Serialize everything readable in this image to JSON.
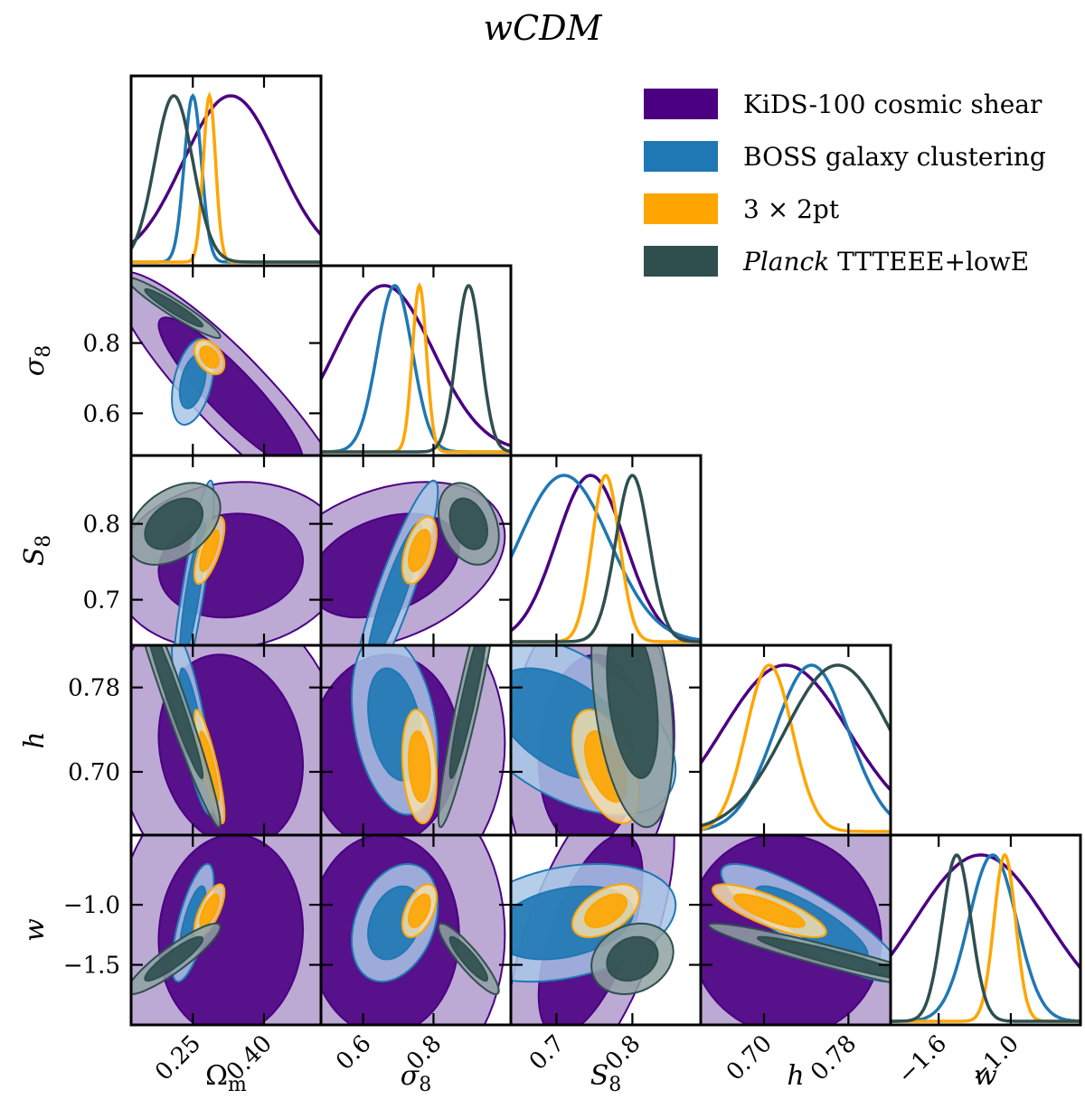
{
  "title": "wCDM",
  "colors": {
    "kids": "#4b0082",
    "kids_light": "#b09acd",
    "boss": "#1f78b4",
    "boss_light": "#a8c7e6",
    "x3": "#ffa500",
    "x3_light": "#f6dfab",
    "planck": "#2f4f4f",
    "planck_light": "#8fa1a1"
  },
  "legend": [
    {
      "key": "kids",
      "label": "KiDS-100 cosmic shear"
    },
    {
      "key": "boss",
      "label": "BOSS galaxy clustering"
    },
    {
      "key": "x3",
      "label": "3 × 2pt"
    },
    {
      "key": "planck",
      "label_em": "Planck",
      "label_rest": " TTTEEE+lowE"
    }
  ],
  "axis_labels": {
    "omega_m": "Ωm",
    "sigma_8": "σ8",
    "S_8": "S8",
    "h": "h",
    "w": "w"
  },
  "chart_data": {
    "type": "triangle_corner_plot",
    "parameters": [
      "Omega_m",
      "sigma_8",
      "S_8",
      "h",
      "w"
    ],
    "ranges": {
      "Omega_m": [
        0.12,
        0.52
      ],
      "sigma_8": [
        0.48,
        1.02
      ],
      "S_8": [
        0.64,
        0.89
      ],
      "h": [
        0.64,
        0.82
      ],
      "w": [
        -2.0,
        -0.42
      ]
    },
    "ticks": {
      "Omega_m": {
        "values": [
          0.25,
          0.4
        ],
        "labels": [
          "0.25",
          "0.40"
        ]
      },
      "sigma_8": {
        "values": [
          0.6,
          0.8
        ],
        "labels": [
          "0.6",
          "0.8"
        ]
      },
      "S_8": {
        "values": [
          0.7,
          0.8
        ],
        "labels": [
          "0.7",
          "0.8"
        ]
      },
      "h": {
        "values": [
          0.7,
          0.78
        ],
        "labels": [
          "0.70",
          "0.78"
        ]
      },
      "w": {
        "values": [
          -1.6,
          -1.0
        ],
        "labels": [
          "−1.6",
          "−1.0"
        ],
        "y_values": [
          -1.0,
          -1.5
        ],
        "y_labels": [
          "−1.0",
          "−1.5"
        ]
      }
    },
    "series": [
      {
        "key": "kids",
        "name": "KiDS-100 cosmic shear",
        "mean": {
          "Omega_m": 0.33,
          "sigma_8": 0.66,
          "S_8": 0.745,
          "h": 0.72,
          "w": -1.25
        },
        "sd": {
          "Omega_m": 0.1,
          "sigma_8": 0.14,
          "S_8": 0.045,
          "h": 0.06,
          "w": 0.55
        },
        "corr": {
          "Omega_m|sigma_8": -0.9,
          "Omega_m|S_8": 0.1,
          "sigma_8|S_8": 0.35,
          "Omega_m|h": -0.15,
          "sigma_8|h": 0.05,
          "S_8|h": 0.1,
          "Omega_m|w": 0.05,
          "sigma_8|w": 0.0,
          "S_8|w": 0.6,
          "h|w": -0.05
        }
      },
      {
        "key": "boss",
        "name": "BOSS galaxy clustering",
        "mean": {
          "Omega_m": 0.25,
          "sigma_8": 0.69,
          "S_8": 0.71,
          "h": 0.745,
          "w": -1.15
        },
        "sd": {
          "Omega_m": 0.018,
          "sigma_8": 0.05,
          "S_8": 0.06,
          "h": 0.035,
          "w": 0.2
        },
        "corr": {
          "Omega_m|sigma_8": 0.4,
          "Omega_m|S_8": 0.85,
          "sigma_8|S_8": 0.9,
          "Omega_m|h": -0.8,
          "sigma_8|h": -0.3,
          "S_8|h": -0.5,
          "Omega_m|w": 0.7,
          "sigma_8|w": 0.3,
          "S_8|w": 0.3,
          "h|w": -0.85
        }
      },
      {
        "key": "x3",
        "name": "3 × 2pt",
        "mean": {
          "Omega_m": 0.285,
          "sigma_8": 0.76,
          "S_8": 0.765,
          "h": 0.705,
          "w": -1.05
        },
        "sd": {
          "Omega_m": 0.013,
          "sigma_8": 0.02,
          "S_8": 0.018,
          "h": 0.022,
          "w": 0.09
        },
        "corr": {
          "Omega_m|sigma_8": -0.4,
          "Omega_m|S_8": 0.7,
          "sigma_8|S_8": 0.5,
          "Omega_m|h": -0.85,
          "sigma_8|h": -0.2,
          "S_8|h": -0.5,
          "Omega_m|w": 0.7,
          "sigma_8|w": 0.5,
          "S_8|w": 0.5,
          "h|w": -0.8
        }
      },
      {
        "key": "planck",
        "name": "Planck TTTEEE+lowE",
        "mean": {
          "Omega_m": 0.21,
          "sigma_8": 0.9,
          "S_8": 0.8,
          "h": 0.77,
          "w": -1.45
        },
        "sd": {
          "Omega_m": 0.04,
          "sigma_8": 0.035,
          "S_8": 0.022,
          "h": 0.05,
          "w": 0.12
        },
        "corr": {
          "Omega_m|sigma_8": -0.95,
          "Omega_m|S_8": 0.4,
          "sigma_8|S_8": -0.3,
          "Omega_m|h": -0.97,
          "sigma_8|h": 0.93,
          "S_8|h": -0.35,
          "Omega_m|w": 0.9,
          "sigma_8|w": -0.9,
          "S_8|w": 0.2,
          "h|w": -0.95
        }
      }
    ],
    "contour_levels": [
      "68%",
      "95%"
    ],
    "legend_position": "top-right"
  }
}
